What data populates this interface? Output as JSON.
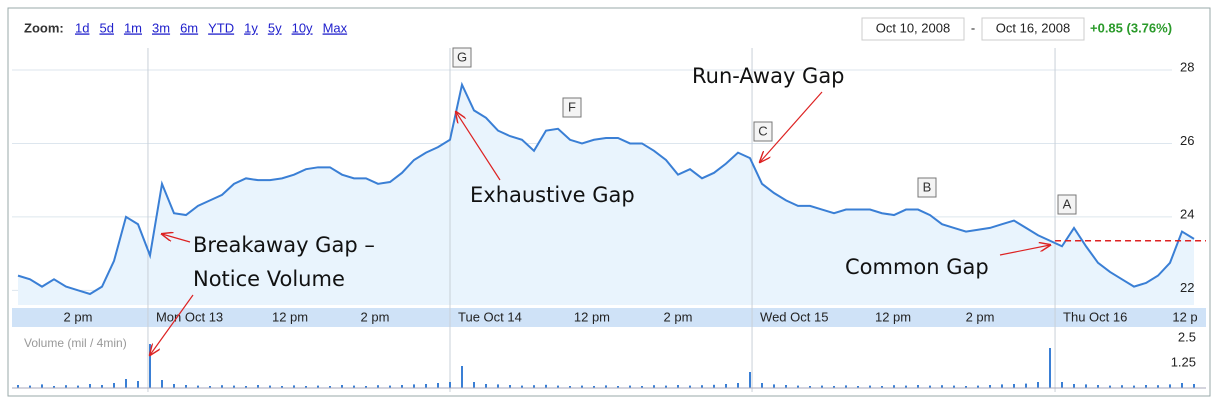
{
  "toolbar": {
    "zoom_label": "Zoom:",
    "zoom_links": [
      "1d",
      "5d",
      "1m",
      "3m",
      "6m",
      "YTD",
      "1y",
      "5y",
      "10y",
      "Max"
    ],
    "date_from": "Oct 10, 2008",
    "date_sep": "-",
    "date_to": "Oct 16, 2008",
    "change": "+0.85 (3.76%)"
  },
  "chart_data": {
    "type": "line",
    "color": "#3a7fd5",
    "values": [
      22.4,
      22.3,
      22.1,
      22.3,
      22.1,
      22.0,
      21.9,
      22.1,
      22.8,
      24.0,
      23.8,
      22.95,
      24.9,
      24.1,
      24.05,
      24.3,
      24.45,
      24.6,
      24.9,
      25.05,
      25.0,
      25.0,
      25.05,
      25.15,
      25.3,
      25.35,
      25.35,
      25.15,
      25.05,
      25.05,
      24.9,
      24.95,
      25.2,
      25.55,
      25.75,
      25.9,
      26.1,
      27.6,
      26.9,
      26.7,
      26.35,
      26.2,
      26.1,
      25.8,
      26.35,
      26.4,
      26.1,
      26.0,
      26.1,
      26.15,
      26.15,
      26.0,
      26.0,
      25.8,
      25.55,
      25.15,
      25.3,
      25.05,
      25.2,
      25.45,
      25.75,
      25.6,
      24.9,
      24.65,
      24.45,
      24.3,
      24.3,
      24.2,
      24.1,
      24.2,
      24.2,
      24.2,
      24.1,
      24.05,
      24.2,
      24.2,
      24.05,
      23.8,
      23.7,
      23.6,
      23.65,
      23.7,
      23.8,
      23.9,
      23.7,
      23.5,
      23.35,
      23.2,
      23.7,
      23.2,
      22.75,
      22.5,
      22.3,
      22.1,
      22.2,
      22.4,
      22.75,
      23.6,
      23.4
    ],
    "xlim": [
      0,
      99
    ],
    "ylim": [
      21.6,
      28.6
    ],
    "yticks": [
      22,
      24,
      26,
      28
    ],
    "grid": true,
    "xticks": [
      {
        "value": 5,
        "label": "2 pm"
      },
      {
        "value": 10.83,
        "label": "Mon Oct 13"
      },
      {
        "value": 22.67,
        "label": "12 pm"
      },
      {
        "value": 29.75,
        "label": "2 pm"
      },
      {
        "value": 36,
        "label": "Tue Oct 14"
      },
      {
        "value": 47.83,
        "label": "12 pm"
      },
      {
        "value": 55,
        "label": "2 pm"
      },
      {
        "value": 61.17,
        "label": "Wed Oct 15"
      },
      {
        "value": 72.92,
        "label": "12 pm"
      },
      {
        "value": 80.17,
        "label": "2 pm"
      },
      {
        "value": 86.42,
        "label": "Thu Oct 16"
      },
      {
        "value": 97.25,
        "label": "12 p"
      }
    ],
    "reference_line": {
      "value": 23.35,
      "color": "#d22"
    },
    "markers": [
      "G",
      "F",
      "C",
      "B",
      "A"
    ],
    "volume": {
      "label": "Volume (mil / 4min)",
      "color": "#3a7fd5",
      "ylim": [
        0,
        2.9
      ],
      "yticks": [
        1.25,
        2.5
      ],
      "values": [
        0.15,
        0.12,
        0.18,
        0.1,
        0.14,
        0.12,
        0.2,
        0.15,
        0.25,
        0.45,
        0.35,
        2.2,
        0.4,
        0.2,
        0.15,
        0.12,
        0.1,
        0.14,
        0.12,
        0.1,
        0.15,
        0.12,
        0.1,
        0.13,
        0.1,
        0.12,
        0.1,
        0.15,
        0.12,
        0.1,
        0.14,
        0.12,
        0.15,
        0.18,
        0.2,
        0.25,
        0.3,
        1.1,
        0.3,
        0.2,
        0.18,
        0.15,
        0.12,
        0.14,
        0.16,
        0.12,
        0.1,
        0.12,
        0.1,
        0.13,
        0.1,
        0.12,
        0.1,
        0.14,
        0.12,
        0.15,
        0.12,
        0.14,
        0.16,
        0.2,
        0.25,
        0.8,
        0.25,
        0.18,
        0.15,
        0.12,
        0.1,
        0.12,
        0.1,
        0.13,
        0.1,
        0.12,
        0.1,
        0.14,
        0.12,
        0.15,
        0.12,
        0.14,
        0.12,
        0.1,
        0.12,
        0.15,
        0.18,
        0.2,
        0.22,
        0.3,
        2.0,
        0.3,
        0.2,
        0.18,
        0.15,
        0.12,
        0.14,
        0.12,
        0.15,
        0.14,
        0.18,
        0.25,
        0.2
      ]
    }
  },
  "annotations": {
    "run_away": "Run-Away Gap",
    "exhaustive": "Exhaustive Gap",
    "breakaway_1": "Breakaway Gap –",
    "breakaway_2": "Notice Volume",
    "common": "Common Gap"
  }
}
